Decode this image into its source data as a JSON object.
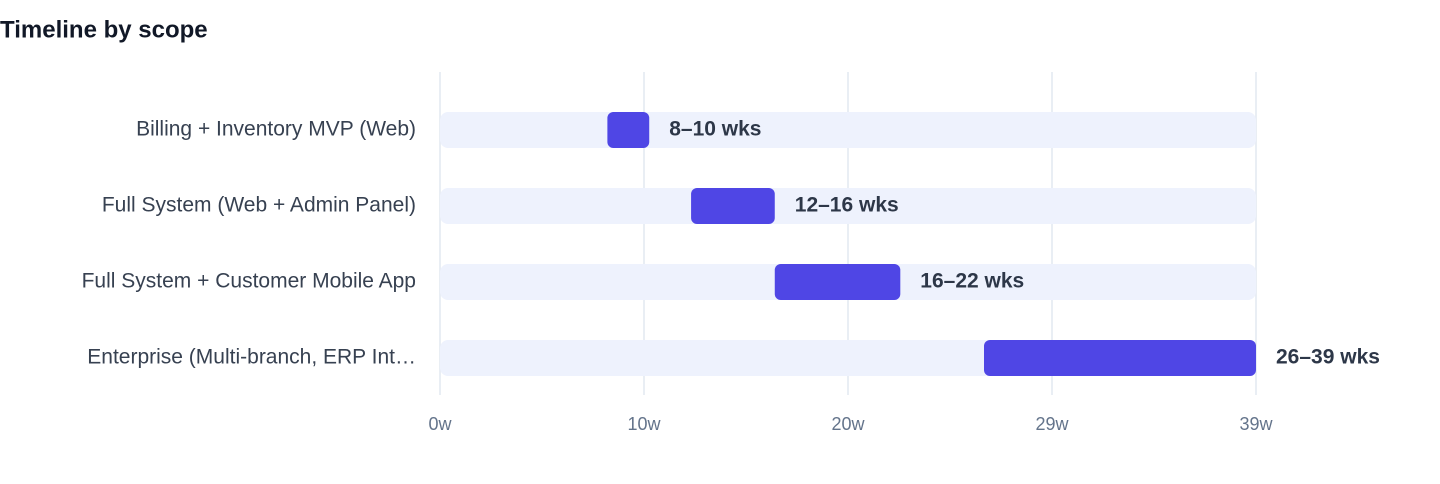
{
  "chart_data": {
    "type": "range-bar",
    "title": "Timeline by scope",
    "categories": [
      "Billing + Inventory MVP (Web)",
      "Full System (Web + Admin Panel)",
      "Full System + Customer Mobile App",
      "Enterprise (Multi-branch, ERP Int…"
    ],
    "starts": [
      8,
      12,
      16,
      26
    ],
    "ends": [
      10,
      16,
      22,
      39
    ],
    "value_labels": [
      "8–10 wks",
      "12–16 wks",
      "16–22 wks",
      "26–39 wks"
    ],
    "color": "#4f46e5",
    "track_color": "#eef2fd",
    "xlim": [
      0,
      39
    ],
    "xticks": [
      {
        "value": 0,
        "label": "0w"
      },
      {
        "value": 9.75,
        "label": "10w"
      },
      {
        "value": 19.5,
        "label": "20w"
      },
      {
        "value": 29.25,
        "label": "29w"
      },
      {
        "value": 39,
        "label": "39w"
      }
    ],
    "grid": true
  }
}
